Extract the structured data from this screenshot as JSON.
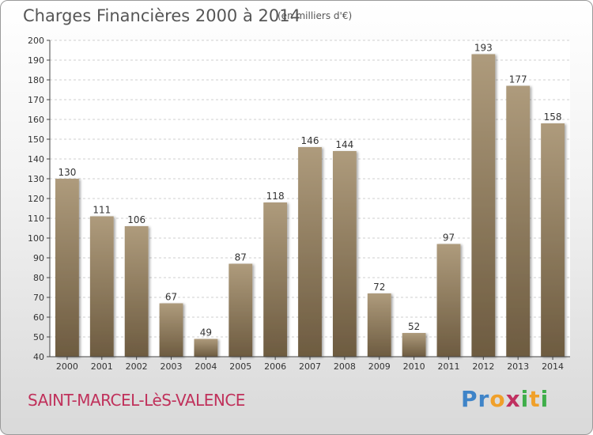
{
  "header": {
    "title": "Charges Financières 2000 à 2014",
    "unit": "(en milliers d'€)"
  },
  "footer": {
    "city": "SAINT-MARCEL-LèS-VALENCE",
    "logo_letters": [
      "P",
      "r",
      "o",
      "x",
      "i",
      "t",
      "i"
    ],
    "logo_colors": [
      "#3f84c8",
      "#3f84c8",
      "#f0a02a",
      "#c03060",
      "#3fae4a",
      "#f0a02a",
      "#3fae4a"
    ]
  },
  "colors": {
    "bar_top": "#ae9b7c",
    "bar_bottom": "#6d5b40",
    "grid": "#cfcfcf",
    "axis_text": "#333333"
  },
  "chart_data": {
    "type": "bar",
    "title": "Charges Financières 2000 à 2014",
    "subtitle": "(en milliers d'€)",
    "categories": [
      "2000",
      "2001",
      "2002",
      "2003",
      "2004",
      "2005",
      "2006",
      "2007",
      "2008",
      "2009",
      "2010",
      "2011",
      "2012",
      "2013",
      "2014"
    ],
    "values": [
      130,
      111,
      106,
      67,
      49,
      87,
      118,
      146,
      144,
      72,
      52,
      97,
      193,
      177,
      158
    ],
    "ylim": [
      40,
      200
    ],
    "yticks": [
      40,
      50,
      60,
      70,
      80,
      90,
      100,
      110,
      120,
      130,
      140,
      150,
      160,
      170,
      180,
      190,
      200
    ],
    "grid": true,
    "xlabel": "",
    "ylabel": ""
  }
}
